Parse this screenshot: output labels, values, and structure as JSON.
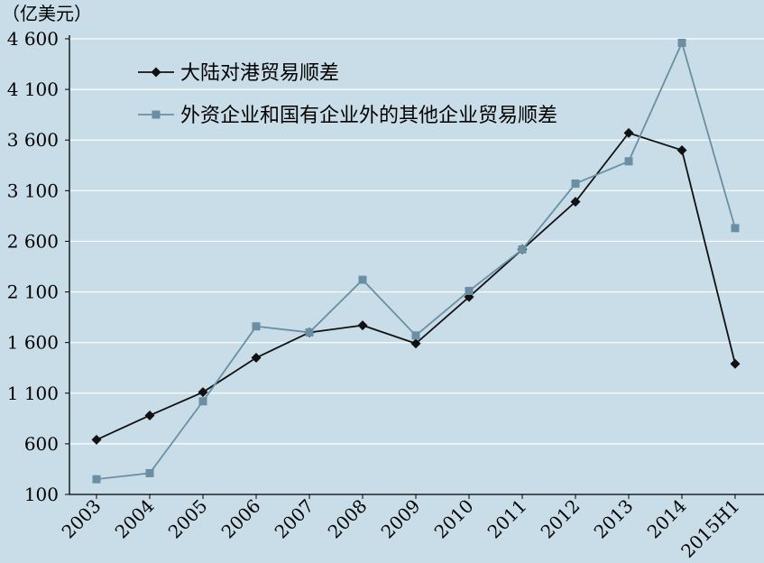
{
  "chart_data": {
    "type": "line",
    "title": "",
    "xlabel": "",
    "ylabel": "",
    "unit": "（亿美元）",
    "categories": [
      "2003",
      "2004",
      "2005",
      "2006",
      "2007",
      "2008",
      "2009",
      "2010",
      "2011",
      "2012",
      "2013",
      "2014",
      "2015H1"
    ],
    "ylim": [
      100,
      4600
    ],
    "yticks": [
      100,
      600,
      1100,
      1600,
      2100,
      2600,
      3100,
      3600,
      4100,
      4600
    ],
    "ytick_labels": [
      "100",
      "600",
      "1 100",
      "1 600",
      "2 100",
      "2 600",
      "3 100",
      "3 600",
      "4 100",
      "4 600"
    ],
    "grid": true,
    "legend_position": "top-left",
    "series": [
      {
        "name": "大陆对港贸易顺差",
        "color": "#111111",
        "marker": "diamond",
        "values": [
          640,
          880,
          1110,
          1450,
          1700,
          1770,
          1590,
          2050,
          2520,
          2990,
          3670,
          3500,
          1390
        ]
      },
      {
        "name": "外资企业和国有企业外的其他企业贸易顺差",
        "color": "#6a8fa3",
        "marker": "square",
        "values": [
          250,
          310,
          1020,
          1760,
          1700,
          2220,
          1670,
          2110,
          2520,
          3170,
          3390,
          4560,
          2730
        ]
      }
    ]
  }
}
